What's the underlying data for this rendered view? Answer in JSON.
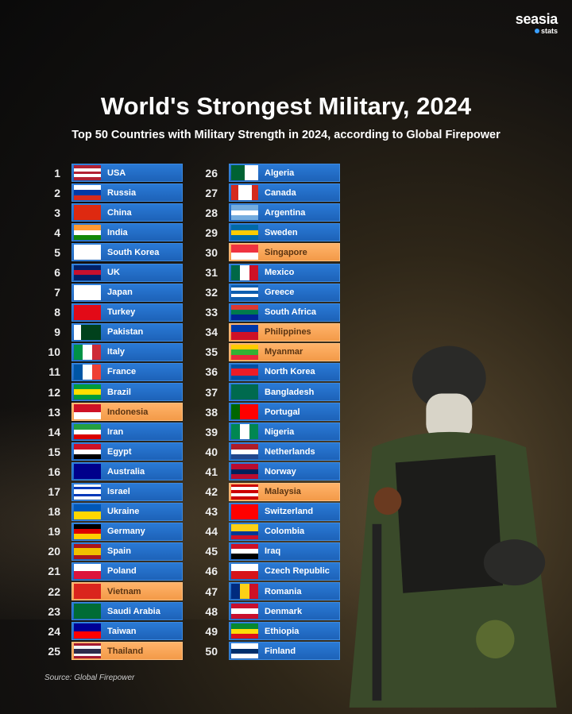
{
  "brand": {
    "main": "seasia",
    "sub": "stats",
    "accent": "#3aa0ff"
  },
  "title": "World's Strongest Military, 2024",
  "subtitle": "Top 50 Countries with Military Strength in 2024, according to Global Firepower",
  "source": "Source: Global Firepower",
  "colors": {
    "default_bar": "#2470c8",
    "highlight_bar": "#f7a35a"
  },
  "rankings": [
    {
      "rank": "1",
      "country": "USA",
      "hl": false,
      "flag": {
        "d": "h",
        "c": [
          "#b22234",
          "#fff",
          "#b22234",
          "#fff",
          "#b22234"
        ]
      }
    },
    {
      "rank": "2",
      "country": "Russia",
      "hl": false,
      "flag": {
        "d": "h",
        "c": [
          "#fff",
          "#0039a6",
          "#d52b1e"
        ]
      }
    },
    {
      "rank": "3",
      "country": "China",
      "hl": false,
      "flag": {
        "d": "h",
        "c": [
          "#de2910"
        ]
      }
    },
    {
      "rank": "4",
      "country": "India",
      "hl": false,
      "flag": {
        "d": "h",
        "c": [
          "#ff9933",
          "#fff",
          "#138808"
        ]
      }
    },
    {
      "rank": "5",
      "country": "South Korea",
      "hl": false,
      "flag": {
        "d": "h",
        "c": [
          "#fff"
        ]
      }
    },
    {
      "rank": "6",
      "country": "UK",
      "hl": false,
      "flag": {
        "d": "h",
        "c": [
          "#012169",
          "#c8102e",
          "#012169"
        ]
      }
    },
    {
      "rank": "7",
      "country": "Japan",
      "hl": false,
      "flag": {
        "d": "h",
        "c": [
          "#fff"
        ]
      }
    },
    {
      "rank": "8",
      "country": "Turkey",
      "hl": false,
      "flag": {
        "d": "h",
        "c": [
          "#e30a17"
        ]
      }
    },
    {
      "rank": "9",
      "country": "Pakistan",
      "hl": false,
      "flag": {
        "d": "v",
        "c": [
          "#fff",
          "#01411c",
          "#01411c",
          "#01411c"
        ]
      }
    },
    {
      "rank": "10",
      "country": "Italy",
      "hl": false,
      "flag": {
        "d": "v",
        "c": [
          "#009246",
          "#fff",
          "#ce2b37"
        ]
      }
    },
    {
      "rank": "11",
      "country": "France",
      "hl": false,
      "flag": {
        "d": "v",
        "c": [
          "#0055a4",
          "#fff",
          "#ef4135"
        ]
      }
    },
    {
      "rank": "12",
      "country": "Brazil",
      "hl": false,
      "flag": {
        "d": "h",
        "c": [
          "#009c3b",
          "#ffdf00",
          "#009c3b"
        ]
      }
    },
    {
      "rank": "13",
      "country": "Indonesia",
      "hl": true,
      "flag": {
        "d": "h",
        "c": [
          "#ce1126",
          "#fff"
        ]
      }
    },
    {
      "rank": "14",
      "country": "Iran",
      "hl": false,
      "flag": {
        "d": "h",
        "c": [
          "#239f40",
          "#fff",
          "#da0000"
        ]
      }
    },
    {
      "rank": "15",
      "country": "Egypt",
      "hl": false,
      "flag": {
        "d": "h",
        "c": [
          "#ce1126",
          "#fff",
          "#000"
        ]
      }
    },
    {
      "rank": "16",
      "country": "Australia",
      "hl": false,
      "flag": {
        "d": "h",
        "c": [
          "#00008b"
        ]
      }
    },
    {
      "rank": "17",
      "country": "Israel",
      "hl": false,
      "flag": {
        "d": "h",
        "c": [
          "#fff",
          "#0038b8",
          "#fff",
          "#fff",
          "#0038b8",
          "#fff"
        ]
      }
    },
    {
      "rank": "18",
      "country": "Ukraine",
      "hl": false,
      "flag": {
        "d": "h",
        "c": [
          "#0057b7",
          "#ffd700"
        ]
      }
    },
    {
      "rank": "19",
      "country": "Germany",
      "hl": false,
      "flag": {
        "d": "h",
        "c": [
          "#000",
          "#dd0000",
          "#ffce00"
        ]
      }
    },
    {
      "rank": "20",
      "country": "Spain",
      "hl": false,
      "flag": {
        "d": "h",
        "c": [
          "#aa151b",
          "#f1bf00",
          "#f1bf00",
          "#aa151b"
        ]
      }
    },
    {
      "rank": "21",
      "country": "Poland",
      "hl": false,
      "flag": {
        "d": "h",
        "c": [
          "#fff",
          "#dc143c"
        ]
      }
    },
    {
      "rank": "22",
      "country": "Vietnam",
      "hl": true,
      "flag": {
        "d": "h",
        "c": [
          "#da251d"
        ]
      }
    },
    {
      "rank": "23",
      "country": "Saudi Arabia",
      "hl": false,
      "flag": {
        "d": "h",
        "c": [
          "#006c35"
        ]
      }
    },
    {
      "rank": "24",
      "country": "Taiwan",
      "hl": false,
      "flag": {
        "d": "h",
        "c": [
          "#000095",
          "#fe0000"
        ]
      }
    },
    {
      "rank": "25",
      "country": "Thailand",
      "hl": true,
      "flag": {
        "d": "h",
        "c": [
          "#a51931",
          "#f4f5f8",
          "#2d2a4a",
          "#2d2a4a",
          "#f4f5f8",
          "#a51931"
        ]
      }
    },
    {
      "rank": "26",
      "country": "Algeria",
      "hl": false,
      "flag": {
        "d": "v",
        "c": [
          "#006233",
          "#fff"
        ]
      }
    },
    {
      "rank": "27",
      "country": "Canada",
      "hl": false,
      "flag": {
        "d": "v",
        "c": [
          "#d52b1e",
          "#fff",
          "#fff",
          "#d52b1e"
        ]
      }
    },
    {
      "rank": "28",
      "country": "Argentina",
      "hl": false,
      "flag": {
        "d": "h",
        "c": [
          "#74acdf",
          "#fff",
          "#74acdf"
        ]
      }
    },
    {
      "rank": "29",
      "country": "Sweden",
      "hl": false,
      "flag": {
        "d": "h",
        "c": [
          "#006aa7",
          "#fecc00",
          "#006aa7"
        ]
      }
    },
    {
      "rank": "30",
      "country": "Singapore",
      "hl": true,
      "flag": {
        "d": "h",
        "c": [
          "#ef3340",
          "#fff"
        ]
      }
    },
    {
      "rank": "31",
      "country": "Mexico",
      "hl": false,
      "flag": {
        "d": "v",
        "c": [
          "#006847",
          "#fff",
          "#ce1126"
        ]
      }
    },
    {
      "rank": "32",
      "country": "Greece",
      "hl": false,
      "flag": {
        "d": "h",
        "c": [
          "#0d5eaf",
          "#fff",
          "#0d5eaf",
          "#fff",
          "#0d5eaf"
        ]
      }
    },
    {
      "rank": "33",
      "country": "South Africa",
      "hl": false,
      "flag": {
        "d": "h",
        "c": [
          "#de3831",
          "#007a4d",
          "#002395"
        ]
      }
    },
    {
      "rank": "34",
      "country": "Philippines",
      "hl": true,
      "flag": {
        "d": "h",
        "c": [
          "#0038a8",
          "#ce1126"
        ]
      }
    },
    {
      "rank": "35",
      "country": "Myanmar",
      "hl": true,
      "flag": {
        "d": "h",
        "c": [
          "#fecb00",
          "#34b233",
          "#ea2839"
        ]
      }
    },
    {
      "rank": "36",
      "country": "North Korea",
      "hl": false,
      "flag": {
        "d": "h",
        "c": [
          "#024fa2",
          "#ed1c27",
          "#ed1c27",
          "#024fa2"
        ]
      }
    },
    {
      "rank": "37",
      "country": "Bangladesh",
      "hl": false,
      "flag": {
        "d": "h",
        "c": [
          "#006a4e"
        ]
      }
    },
    {
      "rank": "38",
      "country": "Portugal",
      "hl": false,
      "flag": {
        "d": "v",
        "c": [
          "#006600",
          "#ff0000",
          "#ff0000"
        ]
      }
    },
    {
      "rank": "39",
      "country": "Nigeria",
      "hl": false,
      "flag": {
        "d": "v",
        "c": [
          "#008751",
          "#fff",
          "#008751"
        ]
      }
    },
    {
      "rank": "40",
      "country": "Netherlands",
      "hl": false,
      "flag": {
        "d": "h",
        "c": [
          "#ae1c28",
          "#fff",
          "#21468b"
        ]
      }
    },
    {
      "rank": "41",
      "country": "Norway",
      "hl": false,
      "flag": {
        "d": "h",
        "c": [
          "#ba0c2f",
          "#00205b",
          "#ba0c2f"
        ]
      }
    },
    {
      "rank": "42",
      "country": "Malaysia",
      "hl": true,
      "flag": {
        "d": "h",
        "c": [
          "#cc0001",
          "#fff",
          "#cc0001",
          "#fff",
          "#cc0001"
        ]
      }
    },
    {
      "rank": "43",
      "country": "Switzerland",
      "hl": false,
      "flag": {
        "d": "h",
        "c": [
          "#ff0000"
        ]
      }
    },
    {
      "rank": "44",
      "country": "Colombia",
      "hl": false,
      "flag": {
        "d": "h",
        "c": [
          "#fcd116",
          "#fcd116",
          "#003893",
          "#ce1126"
        ]
      }
    },
    {
      "rank": "45",
      "country": "Iraq",
      "hl": false,
      "flag": {
        "d": "h",
        "c": [
          "#ce1126",
          "#fff",
          "#000"
        ]
      }
    },
    {
      "rank": "46",
      "country": "Czech Republic",
      "hl": false,
      "flag": {
        "d": "h",
        "c": [
          "#fff",
          "#d7141a"
        ]
      }
    },
    {
      "rank": "47",
      "country": "Romania",
      "hl": false,
      "flag": {
        "d": "v",
        "c": [
          "#002b7f",
          "#fcd116",
          "#ce1126"
        ]
      }
    },
    {
      "rank": "48",
      "country": "Denmark",
      "hl": false,
      "flag": {
        "d": "h",
        "c": [
          "#c8102e",
          "#fff",
          "#c8102e"
        ]
      }
    },
    {
      "rank": "49",
      "country": "Ethiopia",
      "hl": false,
      "flag": {
        "d": "h",
        "c": [
          "#078930",
          "#fcdd09",
          "#da121a"
        ]
      }
    },
    {
      "rank": "50",
      "country": "Finland",
      "hl": false,
      "flag": {
        "d": "h",
        "c": [
          "#fff",
          "#002f6c",
          "#fff"
        ]
      }
    }
  ]
}
